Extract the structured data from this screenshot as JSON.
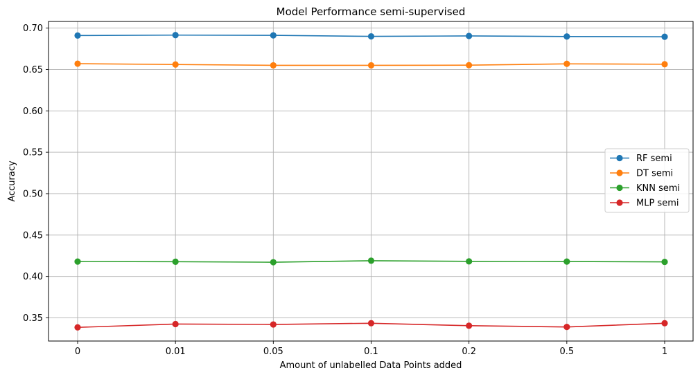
{
  "chart_data": {
    "type": "line",
    "title": "Model Performance semi-supervised",
    "xlabel": "Amount of unlabelled Data Points added",
    "ylabel": "Accuracy",
    "categories": [
      "0",
      "0.01",
      "0.05",
      "0.1",
      "0.2",
      "0.5",
      "1"
    ],
    "yticks": [
      "0.35",
      "0.40",
      "0.45",
      "0.50",
      "0.55",
      "0.60",
      "0.65",
      "0.70"
    ],
    "ylim": [
      0.322,
      0.708
    ],
    "grid": true,
    "legend_position": "center-right",
    "series": [
      {
        "name": "RF semi",
        "color": "#1f77b4",
        "values": [
          0.691,
          0.6915,
          0.6912,
          0.69,
          0.6905,
          0.6898,
          0.6895
        ]
      },
      {
        "name": "DT semi",
        "color": "#ff7f0e",
        "values": [
          0.657,
          0.656,
          0.655,
          0.655,
          0.6552,
          0.6568,
          0.6563
        ]
      },
      {
        "name": "KNN semi",
        "color": "#2ca02c",
        "values": [
          0.418,
          0.4178,
          0.4172,
          0.419,
          0.4182,
          0.418,
          0.4176
        ]
      },
      {
        "name": "MLP semi",
        "color": "#d62728",
        "values": [
          0.3385,
          0.3425,
          0.342,
          0.3435,
          0.3405,
          0.339,
          0.3435
        ]
      }
    ]
  }
}
